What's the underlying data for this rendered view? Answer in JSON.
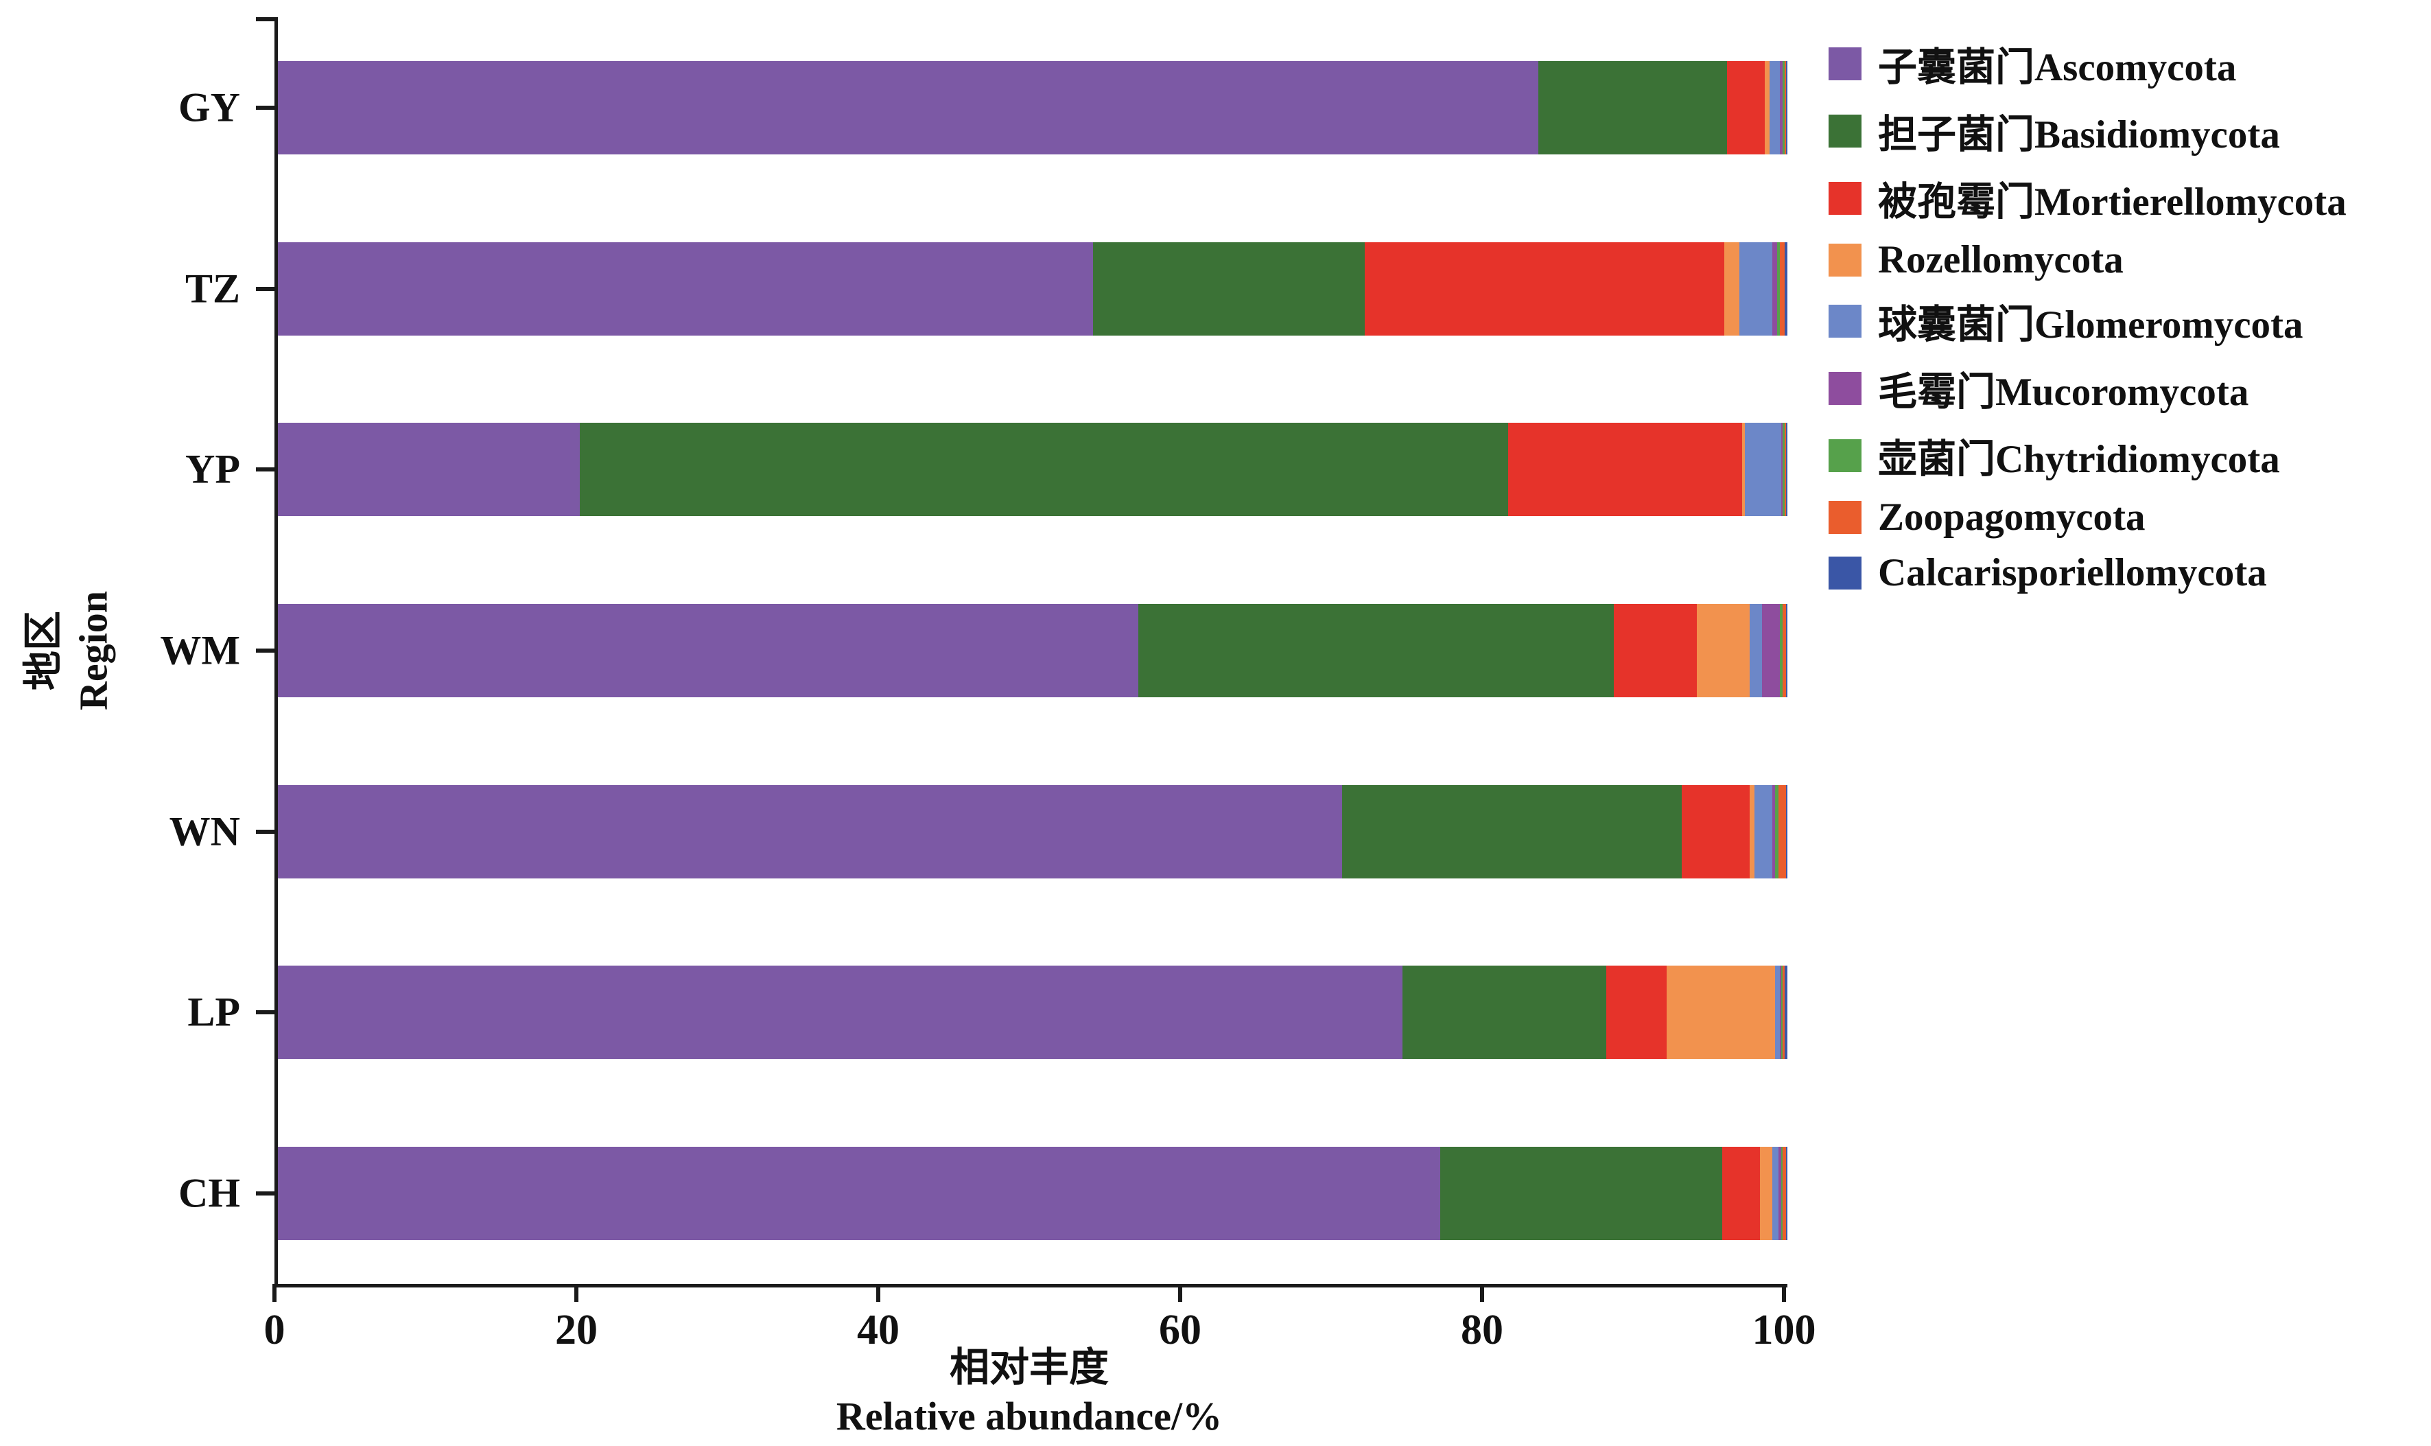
{
  "figure": {
    "background": "#ffffff",
    "axis_color": "#1a1a1a"
  },
  "x_axis": {
    "ticks": [
      0,
      20,
      40,
      60,
      80,
      100
    ],
    "title_zh": "相对丰度",
    "title_en": "Relative abundance/%"
  },
  "y_axis": {
    "title_zh": "地区",
    "title_en": "Region"
  },
  "chart_data": {
    "type": "bar",
    "orientation": "horizontal",
    "stacked": true,
    "grid": false,
    "legend_position": "right",
    "xlim": [
      0,
      100
    ],
    "xticks": [
      0,
      20,
      40,
      60,
      80,
      100
    ],
    "xlabel": "相对丰度 Relative abundance/%",
    "ylabel": "地区 Region",
    "categories": [
      "GY",
      "TZ",
      "YP",
      "WM",
      "WN",
      "LP",
      "CH"
    ],
    "series": [
      {
        "name": "子囊菌门Ascomycota",
        "color": "#7C59A5",
        "values": [
          83.5,
          54.0,
          20.0,
          57.0,
          70.5,
          74.5,
          77.0
        ]
      },
      {
        "name": "担子菌门Basidiomycota",
        "color": "#3B7236",
        "values": [
          12.5,
          18.0,
          61.5,
          31.5,
          22.5,
          13.5,
          18.7
        ]
      },
      {
        "name": "被孢霉门Mortierellomycota",
        "color": "#E6332A",
        "values": [
          2.5,
          23.8,
          15.5,
          5.5,
          4.5,
          4.0,
          2.5
        ]
      },
      {
        "name": "Rozellomycota",
        "color": "#F2924E",
        "values": [
          0.3,
          1.0,
          0.2,
          3.5,
          0.3,
          7.2,
          0.8
        ]
      },
      {
        "name": "球囊菌门Glomeromycota",
        "color": "#6C87C8",
        "values": [
          0.7,
          2.2,
          2.4,
          0.8,
          1.2,
          0.3,
          0.4
        ]
      },
      {
        "name": "毛霉门Mucoromycota",
        "color": "#8E4D9E",
        "values": [
          0.2,
          0.3,
          0.1,
          1.2,
          0.2,
          0.1,
          0.2
        ]
      },
      {
        "name": "壶菌门Chytridiomycota",
        "color": "#56A14B",
        "values": [
          0.1,
          0.2,
          0.1,
          0.2,
          0.2,
          0.1,
          0.1
        ]
      },
      {
        "name": "Zoopagomycota",
        "color": "#EA5D2D",
        "values": [
          0.1,
          0.3,
          0.1,
          0.2,
          0.5,
          0.1,
          0.2
        ]
      },
      {
        "name": "Calcarisporiellomycota",
        "color": "#3A56A6",
        "values": [
          0.1,
          0.2,
          0.1,
          0.1,
          0.1,
          0.2,
          0.1
        ]
      }
    ]
  }
}
